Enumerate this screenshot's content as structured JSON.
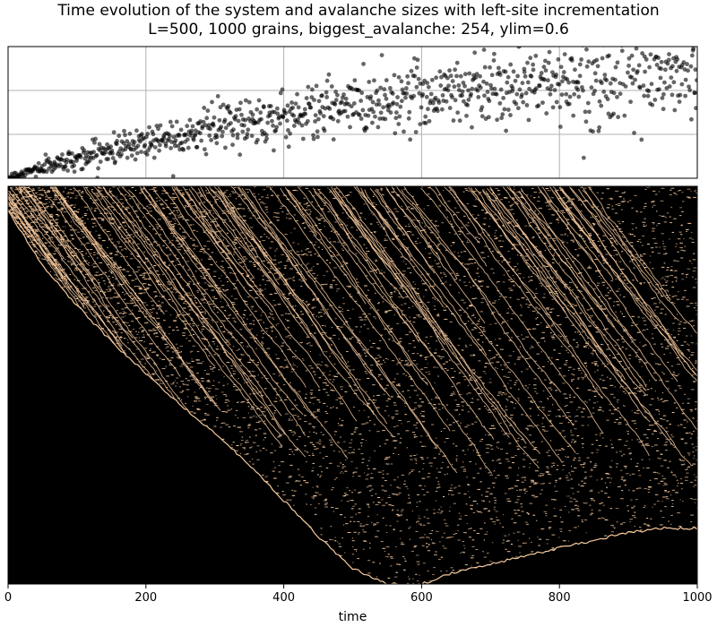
{
  "figure": {
    "title_line1": "Time evolution of the system and avalanche sizes with left-site incrementation",
    "title_line2": "L=500, 1000 grains, biggest_avalanche: 254, ylim=0.6"
  },
  "chart_data": [
    {
      "type": "scatter",
      "title": "",
      "xlabel": "",
      "ylabel": "",
      "xlim": [
        0,
        1000
      ],
      "ylim": [
        0,
        0.6
      ],
      "xticks": [
        0,
        200,
        400,
        600,
        800,
        1000
      ],
      "yticks": [
        0.2,
        0.4
      ],
      "tick_labels_shown": false,
      "grid": true,
      "marker_color": "#000000",
      "marker_alpha": 0.6,
      "n_points": 1000,
      "trend": {
        "x": [
          0,
          50,
          100,
          150,
          200,
          250,
          300,
          350,
          400,
          450,
          500,
          550,
          600,
          650,
          700,
          750,
          800,
          850,
          900,
          950,
          1000
        ],
        "y": [
          0.0,
          0.05,
          0.09,
          0.13,
          0.17,
          0.2,
          0.23,
          0.26,
          0.28,
          0.31,
          0.33,
          0.36,
          0.38,
          0.4,
          0.42,
          0.43,
          0.44,
          0.45,
          0.46,
          0.47,
          0.48
        ]
      },
      "spread": {
        "x": [
          0,
          200,
          400,
          600,
          800,
          1000
        ],
        "y": [
          0.01,
          0.04,
          0.06,
          0.08,
          0.09,
          0.1
        ]
      }
    },
    {
      "type": "heatmap",
      "title": "",
      "xlabel": "time",
      "ylabel": "",
      "xlim": [
        0,
        1000
      ],
      "xticks": [
        "0",
        "200",
        "400",
        "600",
        "800",
        "1000"
      ],
      "background_color": "#000000",
      "active_color": "#f7c99d",
      "active_edge": {
        "x": [
          0,
          50,
          100,
          150,
          200,
          250,
          300,
          350,
          400,
          450,
          500,
          550,
          600,
          650,
          700,
          750,
          800,
          850,
          900,
          950,
          1000
        ],
        "depth": [
          0.06,
          0.2,
          0.3,
          0.39,
          0.47,
          0.55,
          0.62,
          0.7,
          0.79,
          0.88,
          0.96,
          1.0,
          1.0,
          0.97,
          0.95,
          0.93,
          0.91,
          0.89,
          0.87,
          0.86,
          0.86
        ]
      }
    }
  ]
}
